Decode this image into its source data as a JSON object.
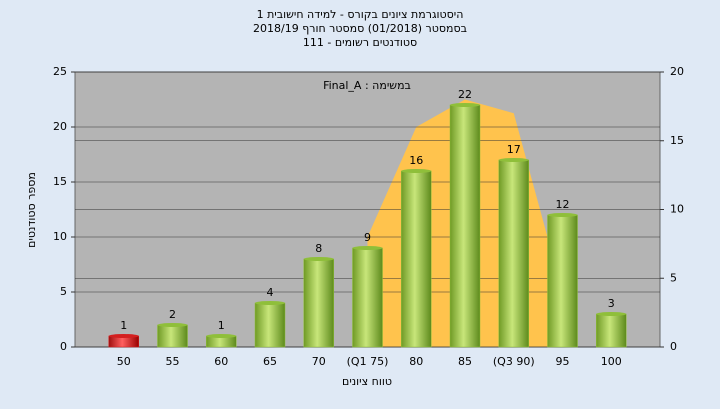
{
  "chart_data": {
    "type": "bar",
    "title": [
      "היסטוגרמת ציונים בקורס - למידה חישובית 1",
      "בסמסטר (01/2018)  סמסטר חורף 2018/19",
      "סטודנטים רשומים - 111"
    ],
    "annotation": "Final_A : במשימה",
    "x_label": "טווח ציונים",
    "y_label": "מספר סטודנטים",
    "categories": [
      "50",
      "55",
      "60",
      "65",
      "70",
      "(Q1 75)",
      "80",
      "85",
      "(Q3 90)",
      "95",
      "100"
    ],
    "series": [
      {
        "type": "bar",
        "values": [
          1,
          2,
          1,
          4,
          8,
          9,
          16,
          22,
          17,
          12,
          3
        ],
        "colors": [
          "#d42020",
          "#8fbf3a",
          "#8fbf3a",
          "#8fbf3a",
          "#8fbf3a",
          "#8fbf3a",
          "#8fbf3a",
          "#8fbf3a",
          "#8fbf3a",
          "#8fbf3a",
          "#8fbf3a"
        ]
      },
      {
        "type": "area",
        "axis": "y2",
        "color": "#ffc34d",
        "values": [
          null,
          null,
          null,
          null,
          null,
          8,
          16,
          18,
          17,
          4,
          null
        ]
      }
    ],
    "ylim": [
      0,
      25
    ],
    "yticks": [
      0,
      5,
      10,
      15,
      20,
      25
    ],
    "y2lim": [
      0,
      20
    ],
    "y2ticks": [
      0,
      5,
      10,
      15,
      20
    ],
    "grid": true
  }
}
